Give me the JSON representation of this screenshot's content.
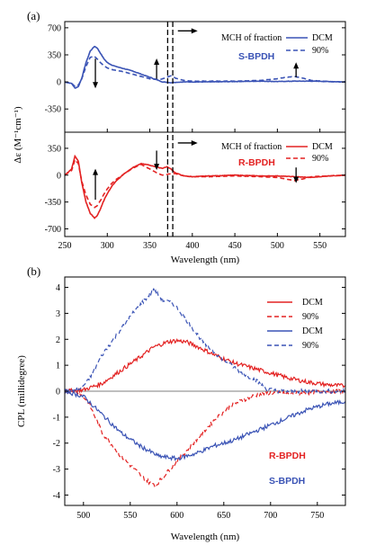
{
  "chart_data": [
    {
      "type": "line",
      "panel_label": "(a)",
      "xlabel": "Wavelength (nm)",
      "ylabel": "Δε (M⁻¹cm⁻¹)",
      "xlim": [
        250,
        580
      ],
      "x_ticks": [
        250,
        300,
        350,
        400,
        450,
        500,
        550
      ],
      "subpanels": [
        {
          "compound": "S-BPDH",
          "color": "#3a53b5",
          "ylim": [
            -650,
            780
          ],
          "y_ticks": [
            700,
            350,
            0,
            -350
          ],
          "legend_title": "MCH of fraction",
          "series": [
            {
              "name": "DCM",
              "style": "solid",
              "x": [
                250,
                258,
                262,
                266,
                270,
                275,
                280,
                285,
                288,
                292,
                296,
                300,
                305,
                310,
                320,
                330,
                340,
                350,
                360,
                365,
                370,
                375,
                380,
                390,
                400,
                420,
                450,
                480,
                500,
                520,
                540,
                560,
                580
              ],
              "y": [
                0,
                -20,
                -80,
                -60,
                50,
                250,
                400,
                460,
                440,
                370,
                300,
                250,
                220,
                200,
                170,
                140,
                100,
                60,
                20,
                0,
                -5,
                -10,
                -5,
                0,
                0,
                0,
                5,
                10,
                5,
                10,
                10,
                5,
                0
              ]
            },
            {
              "name": "90%",
              "style": "dashed",
              "x": [
                250,
                258,
                262,
                266,
                270,
                275,
                280,
                285,
                288,
                292,
                296,
                300,
                305,
                310,
                320,
                330,
                340,
                350,
                360,
                365,
                370,
                375,
                380,
                390,
                400,
                420,
                450,
                480,
                500,
                510,
                520,
                530,
                540,
                560,
                580
              ],
              "y": [
                0,
                -20,
                -60,
                -40,
                40,
                200,
                320,
                330,
                300,
                250,
                210,
                180,
                160,
                150,
                130,
                100,
                70,
                40,
                30,
                40,
                60,
                80,
                50,
                20,
                10,
                10,
                10,
                20,
                40,
                60,
                70,
                50,
                20,
                5,
                0
              ]
            }
          ],
          "arrows": [
            {
              "x": 286,
              "y_from": 300,
              "y_to": -60,
              "direction": "down"
            },
            {
              "x": 358,
              "y_from": 40,
              "y_to": 280,
              "direction": "up"
            },
            {
              "x": 522,
              "y_from": 60,
              "y_to": 230,
              "direction": "up"
            },
            {
              "x": 383,
              "y": 660,
              "direction": "right"
            }
          ]
        },
        {
          "compound": "R-BPDH",
          "color": "#e32222",
          "ylim": [
            -800,
            560
          ],
          "y_ticks": [
            350,
            0,
            -350,
            -700
          ],
          "legend_title": "MCH of fraction",
          "series": [
            {
              "name": "DCM",
              "style": "solid",
              "x": [
                250,
                258,
                262,
                266,
                270,
                275,
                280,
                285,
                288,
                292,
                296,
                300,
                305,
                310,
                320,
                330,
                340,
                350,
                360,
                365,
                370,
                375,
                380,
                390,
                400,
                420,
                450,
                480,
                500,
                520,
                540,
                560,
                580
              ],
              "y": [
                0,
                80,
                250,
                180,
                -100,
                -350,
                -500,
                -560,
                -530,
                -440,
                -330,
                -240,
                -150,
                -80,
                20,
                100,
                150,
                130,
                100,
                90,
                110,
                80,
                30,
                -10,
                -20,
                -10,
                0,
                -10,
                -10,
                -20,
                -30,
                -10,
                0
              ]
            },
            {
              "name": "90%",
              "style": "dashed",
              "x": [
                250,
                258,
                262,
                266,
                270,
                275,
                280,
                285,
                288,
                292,
                296,
                300,
                305,
                310,
                320,
                330,
                340,
                350,
                360,
                365,
                370,
                375,
                380,
                390,
                400,
                420,
                450,
                480,
                500,
                510,
                520,
                530,
                540,
                560,
                580
              ],
              "y": [
                0,
                60,
                200,
                150,
                -80,
                -260,
                -380,
                -420,
                -400,
                -330,
                -250,
                -180,
                -110,
                -60,
                20,
                90,
                140,
                80,
                20,
                0,
                10,
                20,
                20,
                -10,
                -20,
                -20,
                -10,
                -20,
                -30,
                -50,
                -70,
                -50,
                -20,
                -10,
                0
              ]
            }
          ],
          "arrows": [
            {
              "x": 286,
              "y_from": -320,
              "y_to": 60,
              "direction": "up"
            },
            {
              "x": 358,
              "y_from": 320,
              "y_to": 90,
              "direction": "down"
            },
            {
              "x": 522,
              "y_from": 100,
              "y_to": -80,
              "direction": "down"
            },
            {
              "x": 383,
              "y": 420,
              "direction": "right"
            }
          ]
        }
      ],
      "vlines": [
        371,
        377
      ]
    },
    {
      "type": "line",
      "panel_label": "(b)",
      "xlabel": "Wavelength (nm)",
      "ylabel": "CPL (millidegree)",
      "xlim": [
        480,
        780
      ],
      "ylim": [
        -4.4,
        4.4
      ],
      "x_ticks": [
        500,
        550,
        600,
        650,
        700,
        750
      ],
      "y_ticks": [
        4,
        3,
        2,
        1,
        0,
        -1,
        -2,
        -3,
        -4
      ],
      "compound_labels": [
        {
          "text": "R-BPDH",
          "color": "#e32222"
        },
        {
          "text": "S-BPDH",
          "color": "#3a53b5"
        }
      ],
      "series": [
        {
          "name": "DCM",
          "color": "#e32222",
          "style": "solid",
          "x": [
            480,
            500,
            520,
            540,
            560,
            575,
            590,
            600,
            610,
            620,
            640,
            660,
            680,
            700,
            720,
            740,
            760,
            780
          ],
          "y": [
            0,
            0.05,
            0.3,
            0.8,
            1.3,
            1.7,
            1.9,
            1.95,
            1.9,
            1.75,
            1.4,
            1.1,
            0.9,
            0.7,
            0.5,
            0.35,
            0.25,
            0.2
          ]
        },
        {
          "name": "90%",
          "color": "#e32222",
          "style": "dashed",
          "x": [
            480,
            495,
            505,
            520,
            540,
            560,
            570,
            578,
            585,
            595,
            605,
            620,
            640,
            660,
            680,
            690,
            700,
            720,
            740,
            760,
            780
          ],
          "y": [
            0,
            -0.05,
            -0.4,
            -1.6,
            -2.5,
            -3.2,
            -3.5,
            -3.6,
            -3.3,
            -2.9,
            -2.5,
            -1.9,
            -1.1,
            -0.5,
            -0.2,
            -0.1,
            -0.05,
            -0.1,
            -0.05,
            0,
            0
          ]
        },
        {
          "name": "DCM",
          "color": "#3a53b5",
          "style": "solid",
          "x": [
            480,
            500,
            520,
            540,
            560,
            580,
            600,
            610,
            620,
            640,
            660,
            680,
            700,
            720,
            740,
            760,
            780
          ],
          "y": [
            0,
            -0.2,
            -0.9,
            -1.6,
            -2.1,
            -2.5,
            -2.6,
            -2.5,
            -2.4,
            -2.1,
            -1.9,
            -1.6,
            -1.3,
            -1.0,
            -0.7,
            -0.5,
            -0.4
          ]
        },
        {
          "name": "90%",
          "color": "#3a53b5",
          "style": "dashed",
          "x": [
            480,
            495,
            505,
            520,
            540,
            555,
            565,
            575,
            585,
            595,
            605,
            615,
            630,
            650,
            670,
            685,
            695,
            710,
            730,
            750,
            765,
            780
          ],
          "y": [
            0,
            0.05,
            0.4,
            1.4,
            2.4,
            3.1,
            3.5,
            3.9,
            3.5,
            3.4,
            3.0,
            2.5,
            1.8,
            1.2,
            0.7,
            0.4,
            0.1,
            0,
            0,
            0,
            0,
            0
          ]
        }
      ]
    }
  ]
}
